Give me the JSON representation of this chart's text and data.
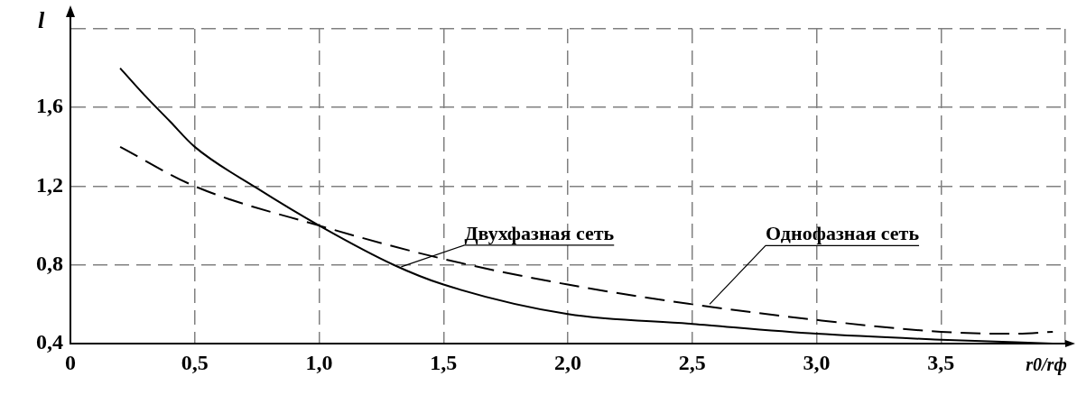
{
  "chart_data": {
    "type": "line",
    "xlabel": "r0/rф",
    "ylabel": "l",
    "x": [
      0.2,
      0.3,
      0.4,
      0.5,
      0.75,
      1.0,
      1.3,
      1.5,
      2.0,
      2.5,
      3.0,
      3.5,
      3.95
    ],
    "series": [
      {
        "color": "#000000",
        "line_style": "solid",
        "values": [
          1.8,
          1.66,
          1.53,
          1.4,
          1.19,
          1.0,
          0.8,
          0.7,
          0.55,
          0.5,
          0.45,
          0.42,
          0.4
        ]
      },
      {
        "color": "#000000",
        "line_style": "dashed",
        "x": [
          0.2,
          0.5,
          1.0,
          1.5,
          2.0,
          2.5,
          3.0,
          3.5,
          3.8,
          3.95
        ],
        "values": [
          1.4,
          1.2,
          1.0,
          0.83,
          0.7,
          0.6,
          0.52,
          0.46,
          0.45,
          0.46
        ]
      }
    ],
    "xlim": [
      0,
      4
    ],
    "xticks": [
      {
        "value": 0,
        "label": "0"
      },
      {
        "value": 0.5,
        "label": "0,5"
      },
      {
        "value": 1.0,
        "label": "1,0"
      },
      {
        "value": 1.5,
        "label": "1,5"
      },
      {
        "value": 2.0,
        "label": "2,0"
      },
      {
        "value": 2.5,
        "label": "2,5"
      },
      {
        "value": 3.0,
        "label": "3,0"
      },
      {
        "value": 3.5,
        "label": "3,5"
      },
      {
        "value": 4,
        "label": null
      }
    ],
    "ylim": [
      0.4,
      2.0
    ],
    "yticks": [
      {
        "value": 0.4,
        "label": "0,4"
      },
      {
        "value": 0.8,
        "label": "0,8"
      },
      {
        "value": 1.2,
        "label": "1,2"
      },
      {
        "value": 1.6,
        "label": "1,6"
      },
      {
        "value": 2.0,
        "label": null
      }
    ],
    "grid": true,
    "legend": false,
    "marker": "none",
    "annotations": [
      {
        "text": "Двухфазная сеть",
        "x": 1.33,
        "y": 0.79
      },
      {
        "text": "Однофазная сеть",
        "x": 2.57,
        "y": 0.6
      }
    ]
  }
}
